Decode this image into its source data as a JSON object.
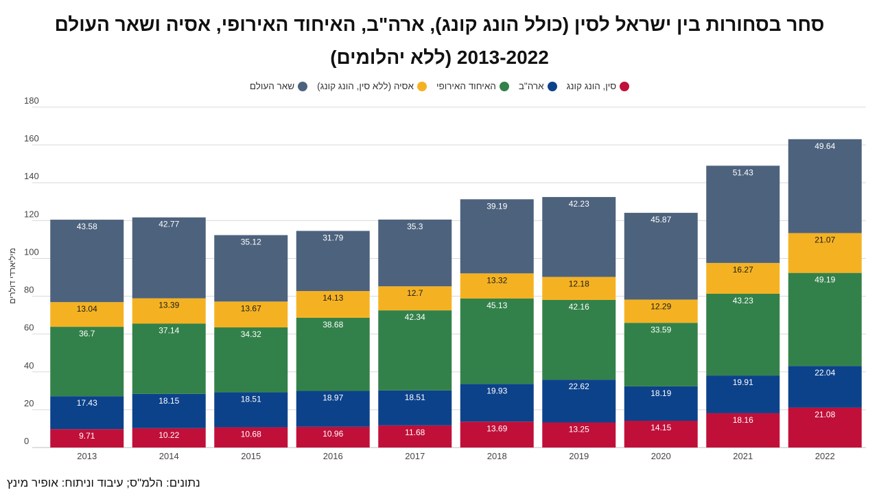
{
  "title": {
    "line1": "סחר בסחורות  בין ישראל לסין (כולל הונג קונג), ארה\"ב, האיחוד האירופי, אסיה ושאר העולם",
    "line2": "2013-2022 (ללא יהלומים)"
  },
  "source": "נתונים: הלמ\"ס; עיבוד וניתוח: אופיר מינץ",
  "chart_data": {
    "type": "bar",
    "stacked": true,
    "categories": [
      "2013",
      "2014",
      "2015",
      "2016",
      "2017",
      "2018",
      "2019",
      "2020",
      "2021",
      "2022"
    ],
    "ylabel": "מיליארדי דולרים",
    "ylim": [
      0,
      180
    ],
    "yticks": [
      0,
      20,
      40,
      60,
      80,
      100,
      120,
      140,
      160,
      180
    ],
    "grid": true,
    "legend_position": "top-center",
    "series": [
      {
        "name": "סין, הונג קונג",
        "color": "#c0103a",
        "label_color": "#ffffff",
        "values": [
          9.71,
          10.22,
          10.68,
          10.96,
          11.68,
          13.69,
          13.25,
          14.15,
          18.16,
          21.08
        ]
      },
      {
        "name": "ארה\"ב",
        "color": "#0c428a",
        "label_color": "#ffffff",
        "values": [
          17.43,
          18.15,
          18.51,
          18.97,
          18.51,
          19.93,
          22.62,
          18.19,
          19.91,
          22.04
        ]
      },
      {
        "name": "האיחוד האירופי",
        "color": "#33814a",
        "label_color": "#ffffff",
        "values": [
          36.7,
          37.14,
          34.32,
          38.68,
          42.34,
          45.13,
          42.16,
          33.59,
          43.23,
          49.19
        ]
      },
      {
        "name": "אסיה (ללא סין, הונג קונג)",
        "color": "#f4b223",
        "label_color": "#1a1a1a",
        "values": [
          13.04,
          13.39,
          13.67,
          14.13,
          12.7,
          13.32,
          12.18,
          12.29,
          16.27,
          21.07
        ]
      },
      {
        "name": "שאר העולם",
        "color": "#4d627d",
        "label_color": "#ffffff",
        "values": [
          43.58,
          42.77,
          35.12,
          31.79,
          35.3,
          39.19,
          42.23,
          45.87,
          51.43,
          49.64
        ]
      }
    ]
  }
}
